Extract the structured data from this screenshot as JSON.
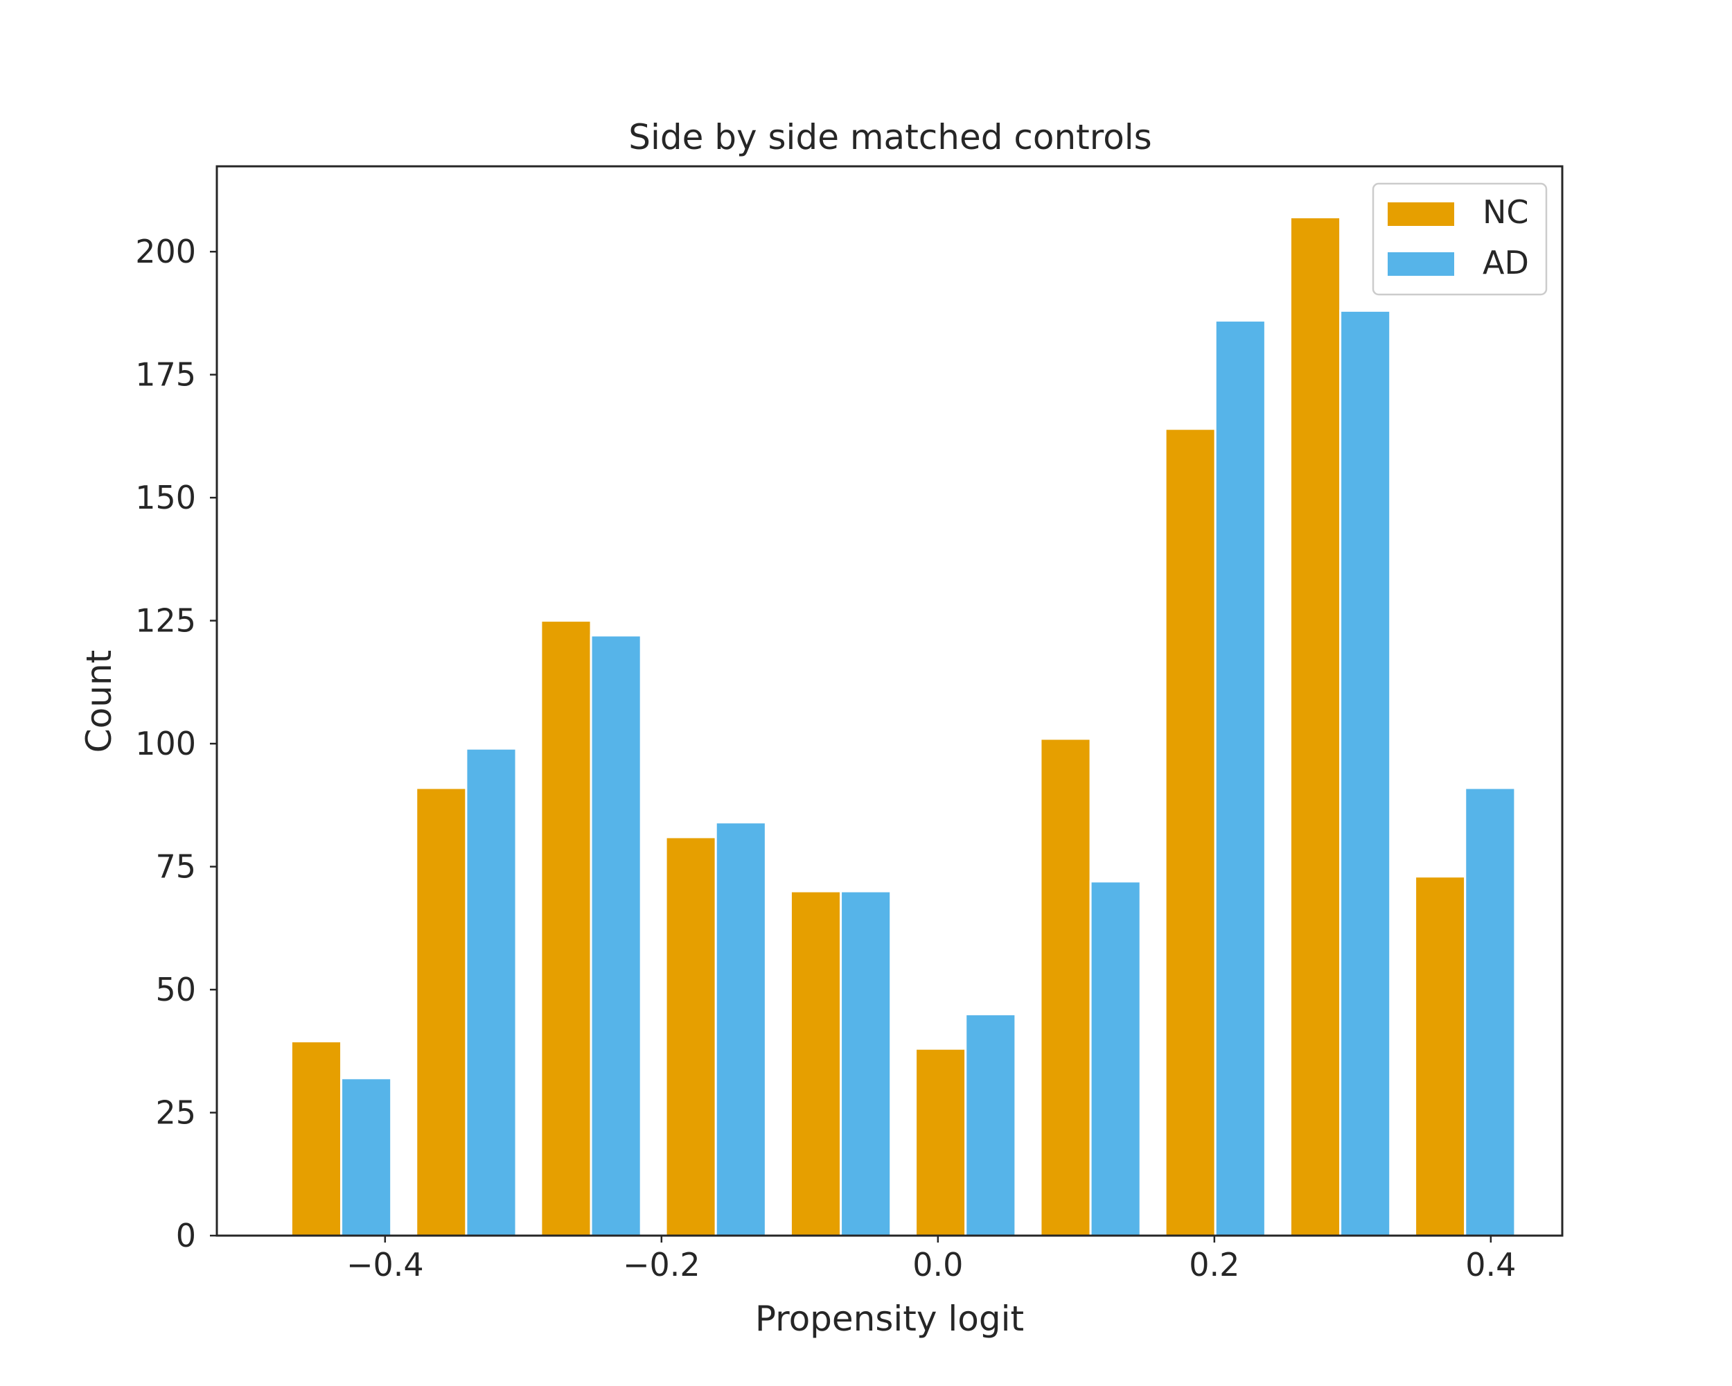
{
  "chart_data": {
    "type": "bar",
    "title": "Side by side matched controls",
    "xlabel": "Propensity logit",
    "ylabel": "Count",
    "xlim": [
      -0.5217,
      0.4517
    ],
    "ylim": [
      0,
      217.35
    ],
    "xticks": [
      -0.4,
      -0.2,
      0.0,
      0.2,
      0.4
    ],
    "xtick_labels": [
      "−0.4",
      "−0.2",
      "0.0",
      "0.2",
      "0.4"
    ],
    "yticks": [
      0,
      25,
      50,
      75,
      100,
      125,
      150,
      175,
      200
    ],
    "ytick_labels": [
      "0",
      "25",
      "50",
      "75",
      "100",
      "125",
      "150",
      "175",
      "200"
    ],
    "grid": false,
    "legend_position": "top-right",
    "bin_centers": [
      -0.4317,
      -0.3413,
      -0.251,
      -0.1607,
      -0.0703,
      0.02,
      0.1104,
      0.2007,
      0.2911,
      0.3814
    ],
    "series": [
      {
        "name": "NC",
        "color": "#E69F00",
        "values": [
          39.5,
          91,
          125,
          81,
          70,
          38,
          101,
          164,
          207,
          73
        ]
      },
      {
        "name": "AD",
        "color": "#56B4E9",
        "values": [
          32,
          99,
          122,
          84,
          70,
          45,
          72,
          186,
          188,
          91
        ]
      }
    ]
  }
}
